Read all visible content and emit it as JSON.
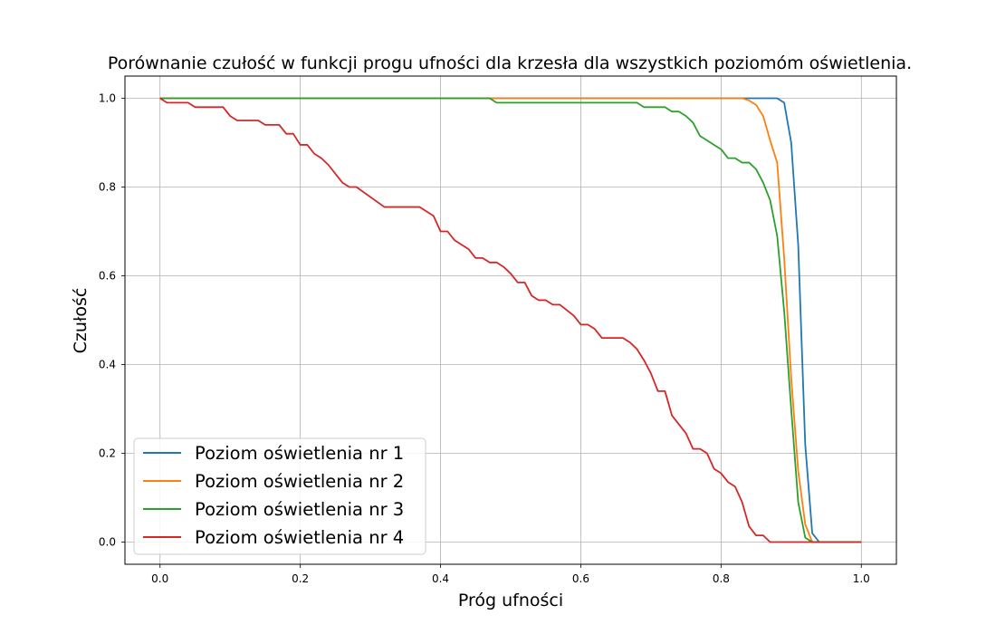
{
  "chart_data": {
    "type": "line",
    "title": "Porównanie czułość w funkcji progu ufności dla krzesła dla wszystkich poziomóm oświetlenia.",
    "xlabel": "Próg ufności",
    "ylabel": "Czułość",
    "xlim": [
      -0.05,
      1.05
    ],
    "ylim": [
      -0.05,
      1.05
    ],
    "xticks": [
      "0.0",
      "0.2",
      "0.4",
      "0.6",
      "0.8",
      "1.0"
    ],
    "yticks": [
      "0.0",
      "0.2",
      "0.4",
      "0.6",
      "0.8",
      "1.0"
    ],
    "grid": true,
    "legend_position": "lower-left",
    "series": [
      {
        "name": "Poziom oświetlenia nr 1",
        "color": "#1f77b4",
        "x": [
          0.0,
          0.87,
          0.88,
          0.89,
          0.9,
          0.91,
          0.92,
          0.93,
          0.94,
          1.0
        ],
        "y": [
          1.0,
          1.0,
          1.0,
          0.99,
          0.9,
          0.67,
          0.22,
          0.02,
          0.0,
          0.0
        ]
      },
      {
        "name": "Poziom oświetlenia nr 2",
        "color": "#ff7f0e",
        "x": [
          0.0,
          0.83,
          0.84,
          0.85,
          0.86,
          0.87,
          0.88,
          0.89,
          0.9,
          0.91,
          0.92,
          0.93,
          1.0
        ],
        "y": [
          1.0,
          1.0,
          0.995,
          0.985,
          0.96,
          0.905,
          0.855,
          0.64,
          0.37,
          0.16,
          0.04,
          0.0,
          0.0
        ]
      },
      {
        "name": "Poziom oświetlenia nr 3",
        "color": "#2ca02c",
        "x": [
          0.0,
          0.47,
          0.48,
          0.68,
          0.69,
          0.72,
          0.73,
          0.74,
          0.75,
          0.76,
          0.77,
          0.78,
          0.79,
          0.8,
          0.81,
          0.82,
          0.83,
          0.84,
          0.85,
          0.86,
          0.87,
          0.88,
          0.89,
          0.9,
          0.91,
          0.92,
          0.93,
          1.0
        ],
        "y": [
          1.0,
          1.0,
          0.99,
          0.99,
          0.98,
          0.98,
          0.97,
          0.97,
          0.96,
          0.945,
          0.915,
          0.905,
          0.895,
          0.885,
          0.865,
          0.865,
          0.855,
          0.855,
          0.84,
          0.81,
          0.77,
          0.69,
          0.52,
          0.3,
          0.09,
          0.01,
          0.0,
          0.0
        ]
      },
      {
        "name": "Poziom oświetlenia nr 4",
        "color": "#d62728",
        "x": [
          0.0,
          0.01,
          0.04,
          0.05,
          0.09,
          0.1,
          0.11,
          0.14,
          0.15,
          0.17,
          0.18,
          0.19,
          0.2,
          0.21,
          0.22,
          0.23,
          0.24,
          0.26,
          0.27,
          0.28,
          0.32,
          0.37,
          0.39,
          0.4,
          0.41,
          0.42,
          0.44,
          0.45,
          0.46,
          0.47,
          0.48,
          0.49,
          0.5,
          0.51,
          0.52,
          0.53,
          0.54,
          0.55,
          0.56,
          0.57,
          0.59,
          0.6,
          0.61,
          0.62,
          0.63,
          0.66,
          0.67,
          0.68,
          0.69,
          0.7,
          0.71,
          0.72,
          0.73,
          0.75,
          0.76,
          0.77,
          0.78,
          0.79,
          0.8,
          0.81,
          0.82,
          0.83,
          0.84,
          0.85,
          0.86,
          0.87,
          1.0
        ],
        "y": [
          1.0,
          0.99,
          0.99,
          0.98,
          0.98,
          0.96,
          0.95,
          0.95,
          0.94,
          0.94,
          0.92,
          0.92,
          0.895,
          0.895,
          0.875,
          0.865,
          0.85,
          0.81,
          0.8,
          0.8,
          0.755,
          0.755,
          0.735,
          0.7,
          0.7,
          0.68,
          0.66,
          0.64,
          0.64,
          0.63,
          0.63,
          0.62,
          0.605,
          0.585,
          0.585,
          0.555,
          0.545,
          0.545,
          0.535,
          0.535,
          0.51,
          0.49,
          0.49,
          0.48,
          0.46,
          0.46,
          0.45,
          0.435,
          0.41,
          0.38,
          0.34,
          0.34,
          0.285,
          0.245,
          0.21,
          0.21,
          0.2,
          0.165,
          0.155,
          0.135,
          0.125,
          0.09,
          0.035,
          0.015,
          0.015,
          0.0,
          0.0
        ]
      }
    ]
  }
}
